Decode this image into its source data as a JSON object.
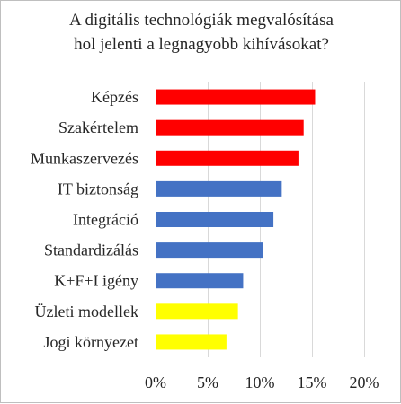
{
  "chart_data": {
    "type": "bar",
    "orientation": "horizontal",
    "title": "A digitális technológiák megvalósítása hol jelenti a legnagyobb kihívásokat?",
    "title_lines": [
      "A digitális technológiák megvalósítása",
      "hol jelenti a legnagyobb kihívásokat?"
    ],
    "categories": [
      "Képzés",
      "Szakértelem",
      "Munkaszervezés",
      "IT biztonság",
      "Integráció",
      "Standardizálás",
      "K+F+I igény",
      "Üzleti modellek",
      "Jogi környezet"
    ],
    "values": [
      15.3,
      14.2,
      13.7,
      12.1,
      11.3,
      10.3,
      8.4,
      7.9,
      6.8
    ],
    "colors": [
      "#ff0000",
      "#ff0000",
      "#ff0000",
      "#4472c4",
      "#4472c4",
      "#4472c4",
      "#4472c4",
      "#ffff00",
      "#ffff00"
    ],
    "xlim": [
      0,
      20
    ],
    "x_ticks": [
      0,
      5,
      10,
      15,
      20
    ],
    "x_tick_labels": [
      "0%",
      "5%",
      "10%",
      "15%",
      "20%"
    ],
    "xlabel": "",
    "ylabel": "",
    "grid": true,
    "legend": "none"
  }
}
